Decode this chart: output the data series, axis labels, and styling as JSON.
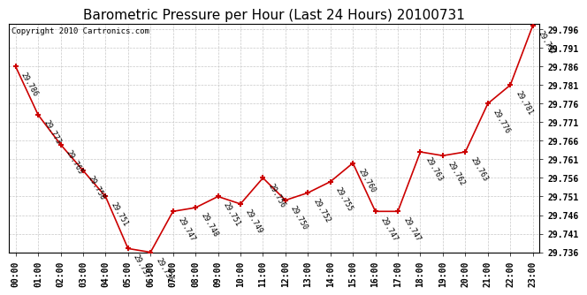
{
  "title": "Barometric Pressure per Hour (Last 24 Hours) 20100731",
  "copyright": "Copyright 2010 Cartronics.com",
  "hours": [
    "00:00",
    "01:00",
    "02:00",
    "03:00",
    "04:00",
    "05:00",
    "06:00",
    "07:00",
    "08:00",
    "09:00",
    "10:00",
    "11:00",
    "12:00",
    "13:00",
    "14:00",
    "15:00",
    "16:00",
    "17:00",
    "18:00",
    "19:00",
    "20:00",
    "21:00",
    "22:00",
    "23:00"
  ],
  "values": [
    29.786,
    29.773,
    29.765,
    29.758,
    29.751,
    29.737,
    29.736,
    29.747,
    29.748,
    29.751,
    29.749,
    29.756,
    29.75,
    29.752,
    29.755,
    29.76,
    29.747,
    29.747,
    29.763,
    29.762,
    29.763,
    29.776,
    29.781,
    29.797
  ],
  "ylim_min": 29.736,
  "ylim_max": 29.7975,
  "ytick_min": 29.736,
  "ytick_max": 29.797,
  "ytick_step": 0.005,
  "line_color": "#cc0000",
  "marker_color": "#cc0000",
  "background_color": "#ffffff",
  "grid_color": "#c8c8c8",
  "title_fontsize": 11,
  "label_fontsize": 6,
  "tick_fontsize": 7,
  "copyright_fontsize": 6.5
}
